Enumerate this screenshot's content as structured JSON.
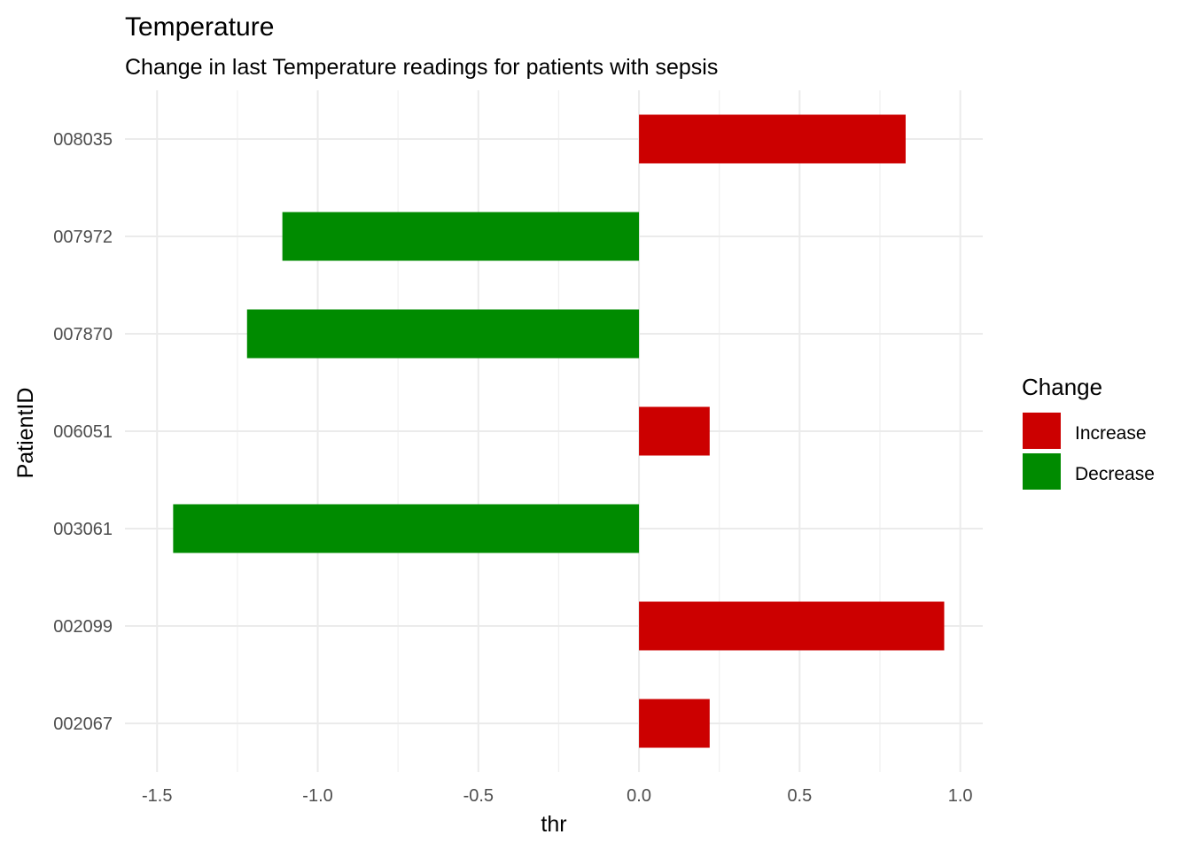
{
  "chart_data": {
    "type": "bar",
    "orientation": "horizontal",
    "title": "Temperature",
    "subtitle": "Change in last Temperature readings for patients with sepsis",
    "xlabel": "thr",
    "ylabel": "PatientID",
    "xlim": [
      -1.6,
      1.07
    ],
    "x_ticks": [
      -1.5,
      -1.0,
      -0.5,
      0.0,
      0.5,
      1.0
    ],
    "x_tick_labels": [
      "-1.5",
      "-1.0",
      "-0.5",
      "0.0",
      "0.5",
      "1.0"
    ],
    "categories": [
      "008035",
      "007972",
      "007870",
      "006051",
      "003061",
      "002099",
      "002067"
    ],
    "values": [
      0.83,
      -1.11,
      -1.22,
      0.22,
      -1.45,
      0.95,
      0.22
    ],
    "change": [
      "Increase",
      "Decrease",
      "Decrease",
      "Increase",
      "Decrease",
      "Increase",
      "Increase"
    ],
    "grid": true,
    "legend": {
      "title": "Change",
      "placement": "right",
      "entries": [
        {
          "label": "Increase",
          "color": "#cc0000"
        },
        {
          "label": "Decrease",
          "color": "#008b00"
        }
      ]
    }
  }
}
